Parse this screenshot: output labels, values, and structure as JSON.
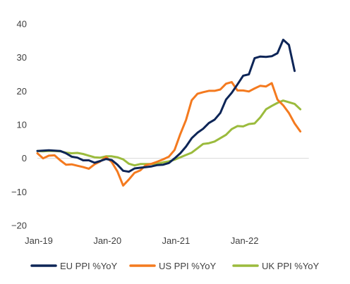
{
  "chart_data": {
    "type": "line",
    "title": "",
    "xlabel": "",
    "ylabel": "",
    "ylim": [
      -20,
      40
    ],
    "yticks": [
      -20,
      -10,
      0,
      10,
      20,
      30,
      40
    ],
    "ytick_labels": [
      "−20",
      "−10",
      "0",
      "10",
      "20",
      "30",
      "40"
    ],
    "x": [
      "2019-01",
      "2019-02",
      "2019-03",
      "2019-04",
      "2019-05",
      "2019-06",
      "2019-07",
      "2019-08",
      "2019-09",
      "2019-10",
      "2019-11",
      "2019-12",
      "2020-01",
      "2020-02",
      "2020-03",
      "2020-04",
      "2020-05",
      "2020-06",
      "2020-07",
      "2020-08",
      "2020-09",
      "2020-10",
      "2020-11",
      "2020-12",
      "2021-01",
      "2021-02",
      "2021-03",
      "2021-04",
      "2021-05",
      "2021-06",
      "2021-07",
      "2021-08",
      "2021-09",
      "2021-10",
      "2021-11",
      "2021-12",
      "2022-01",
      "2022-02",
      "2022-03",
      "2022-04",
      "2022-05",
      "2022-06",
      "2022-07",
      "2022-08",
      "2022-09",
      "2022-10",
      "2022-11",
      "2022-12"
    ],
    "xtick_labels": [
      "Jan-19",
      "Jan-20",
      "Jan-21",
      "Jan-22"
    ],
    "grid": false,
    "legend_position": "bottom",
    "series": [
      {
        "name": "EU PPI %YoY",
        "color": "#0d2557",
        "values": [
          2.2,
          2.3,
          2.4,
          2.3,
          2.2,
          1.5,
          0.5,
          0.2,
          -0.6,
          -0.6,
          -1.3,
          -0.8,
          -0.2,
          -0.5,
          -1.9,
          -3.7,
          -4.0,
          -3.0,
          -2.8,
          -2.6,
          -2.4,
          -2.0,
          -1.9,
          -1.4,
          0.0,
          1.5,
          3.5,
          6.0,
          7.6,
          8.8,
          10.5,
          11.5,
          13.5,
          17.5,
          19.5,
          22.0,
          24.6,
          25.0,
          29.8,
          30.3,
          30.2,
          30.4,
          31.3,
          35.3,
          33.8,
          26.0,
          null,
          null
        ]
      },
      {
        "name": "US PPI %YoY",
        "color": "#f47a1f",
        "values": [
          1.5,
          0.0,
          0.8,
          0.9,
          -0.6,
          -1.9,
          -1.8,
          -2.2,
          -2.6,
          -3.1,
          -1.8,
          -0.9,
          0.4,
          -1.1,
          -3.9,
          -8.1,
          -6.3,
          -4.3,
          -3.6,
          -2.0,
          -1.6,
          -1.0,
          -0.3,
          0.5,
          2.5,
          7.2,
          11.4,
          17.3,
          19.2,
          19.7,
          20.1,
          20.1,
          20.5,
          22.2,
          22.7,
          20.2,
          20.2,
          19.9,
          20.8,
          21.6,
          21.4,
          22.4,
          17.5,
          15.8,
          13.5,
          10.4,
          8.0,
          null
        ]
      },
      {
        "name": "UK PPI %YoY",
        "color": "#9bbb3d",
        "values": [
          2.2,
          2.1,
          2.2,
          2.2,
          2.1,
          1.7,
          1.5,
          1.6,
          1.3,
          0.8,
          0.3,
          0.2,
          0.6,
          0.6,
          0.3,
          -0.3,
          -1.6,
          -2.1,
          -1.7,
          -1.7,
          -1.7,
          -1.6,
          -1.2,
          -0.9,
          -0.4,
          0.3,
          1.0,
          1.7,
          3.0,
          4.3,
          4.5,
          5.0,
          6.0,
          7.0,
          8.7,
          9.6,
          9.5,
          10.2,
          10.4,
          12.2,
          14.6,
          15.6,
          16.5,
          17.2,
          16.7,
          16.2,
          14.6,
          null
        ]
      }
    ]
  }
}
